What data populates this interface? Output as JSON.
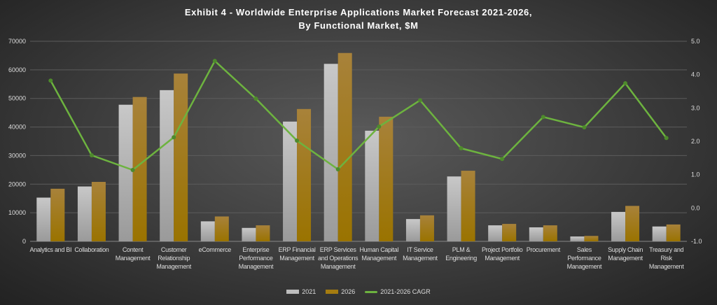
{
  "chart_data": {
    "type": "bar",
    "title": "Exhibit 4 - Worldwide Enterprise Applications Market Forecast 2021-2026,",
    "subtitle": "By Functional Market, $M",
    "categories": [
      "Analytics and BI",
      "Collaboration",
      "Content Management",
      "Customer Relationship Management",
      "eCommerce",
      "Enterprise Performance Management",
      "ERP Financial Management",
      "ERP Services and Operations Management",
      "Human Capital Management",
      "IT Service Management",
      "PLM & Engineering",
      "Project Portfolio Management",
      "Procurement",
      "Sales Performance Management",
      "Supply Chain Management",
      "Treasury and Risk Management"
    ],
    "series": [
      {
        "name": "2021",
        "type": "bar",
        "axis": "left",
        "color": "#b4b4b4",
        "values": [
          15300,
          19200,
          47800,
          52900,
          7000,
          4700,
          41900,
          62100,
          38700,
          7800,
          22700,
          5600,
          4900,
          1700,
          10300,
          5200
        ]
      },
      {
        "name": "2026",
        "type": "bar",
        "axis": "left",
        "color": "#a57c10",
        "values": [
          18400,
          20800,
          50500,
          58700,
          8700,
          5600,
          46300,
          65900,
          43600,
          9100,
          24700,
          6100,
          5600,
          1900,
          12400,
          5900
        ]
      },
      {
        "name": "2021-2026 CAGR",
        "type": "line",
        "axis": "right",
        "color": "#6db33f",
        "values": [
          3.82,
          1.58,
          1.14,
          2.12,
          4.41,
          3.28,
          2.02,
          1.16,
          2.44,
          3.23,
          1.79,
          1.47,
          2.73,
          2.42,
          3.74,
          2.1
        ]
      }
    ],
    "yleft": {
      "lim": [
        0,
        70000
      ],
      "ticks": [
        "0",
        "10000",
        "20000",
        "30000",
        "40000",
        "50000",
        "60000",
        "70000"
      ]
    },
    "yright": {
      "lim": [
        -1.0,
        5.0
      ],
      "ticks": [
        "-1.0",
        "0.0",
        "1.0",
        "2.0",
        "3.0",
        "4.0",
        "5.0"
      ]
    },
    "grid": true,
    "legend": "bottom"
  }
}
